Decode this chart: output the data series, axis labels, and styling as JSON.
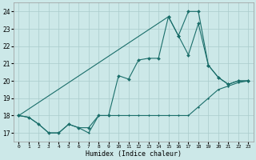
{
  "xlabel": "Humidex (Indice chaleur)",
  "bg_color": "#cce8e8",
  "grid_color": "#aacccc",
  "line_color": "#1a6e6a",
  "xlim": [
    -0.5,
    23.5
  ],
  "ylim": [
    16.5,
    24.5
  ],
  "yticks": [
    17,
    18,
    19,
    20,
    21,
    22,
    23,
    24
  ],
  "xticks": [
    0,
    1,
    2,
    3,
    4,
    5,
    6,
    7,
    8,
    9,
    10,
    11,
    12,
    13,
    14,
    15,
    16,
    17,
    18,
    19,
    20,
    21,
    22,
    23
  ],
  "line1_x": [
    0,
    1,
    2,
    3,
    4,
    5,
    6,
    7,
    8,
    9,
    10,
    11,
    12,
    13,
    14,
    15,
    16,
    17,
    18,
    19,
    20,
    21,
    22,
    23
  ],
  "line1_y": [
    18.0,
    17.9,
    17.5,
    17.0,
    17.0,
    17.5,
    17.3,
    17.0,
    18.0,
    18.0,
    18.0,
    18.0,
    18.0,
    18.0,
    18.0,
    18.0,
    18.0,
    18.0,
    18.5,
    19.0,
    19.5,
    19.7,
    19.9,
    20.0
  ],
  "line2_x": [
    0,
    1,
    2,
    3,
    4,
    5,
    6,
    7,
    8,
    9,
    10,
    11,
    12,
    13,
    14,
    15,
    16,
    17,
    18,
    19,
    20,
    21,
    22,
    23
  ],
  "line2_y": [
    18.0,
    17.9,
    17.5,
    17.0,
    17.0,
    17.5,
    17.3,
    17.3,
    18.0,
    18.0,
    20.3,
    20.1,
    21.2,
    21.3,
    21.3,
    23.7,
    22.6,
    21.5,
    23.3,
    20.9,
    20.2,
    19.8,
    20.0,
    20.0
  ],
  "line3_x": [
    0,
    15,
    16,
    17,
    18,
    19,
    20,
    21,
    22,
    23
  ],
  "line3_y": [
    18.0,
    23.7,
    22.6,
    24.0,
    24.0,
    20.9,
    20.2,
    19.8,
    20.0,
    20.0
  ]
}
